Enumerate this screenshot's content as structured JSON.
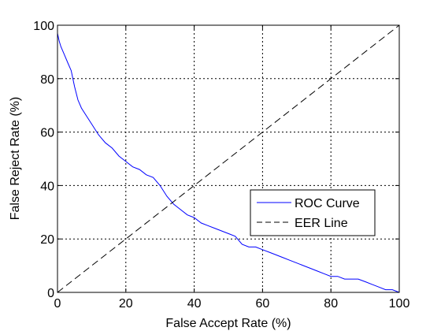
{
  "chart_data": {
    "type": "line",
    "xlabel": "False Accept Rate (%)",
    "ylabel": "False Reject Rate (%)",
    "xlim": [
      0,
      100
    ],
    "ylim": [
      0,
      100
    ],
    "xticks": [
      "0",
      "20",
      "40",
      "60",
      "80",
      "100"
    ],
    "yticks": [
      "0",
      "20",
      "40",
      "60",
      "80",
      "100"
    ],
    "grid": true,
    "legend_position": "right",
    "series": [
      {
        "name": "ROC Curve",
        "color": "#0000ff",
        "style": "solid",
        "x": [
          0,
          0.5,
          1,
          2,
          3,
          4,
          5,
          6,
          7,
          8,
          10,
          12,
          14,
          16,
          18,
          20,
          22,
          24,
          26,
          28,
          30,
          32,
          34,
          36,
          38,
          40,
          42,
          44,
          46,
          48,
          50,
          52,
          54,
          56,
          58,
          60,
          62,
          64,
          66,
          68,
          70,
          72,
          74,
          76,
          78,
          80,
          82,
          84,
          86,
          88,
          90,
          92,
          94,
          96,
          98,
          100
        ],
        "y": [
          97,
          94,
          92,
          89,
          86,
          83,
          77,
          72,
          69,
          67,
          63,
          59,
          56,
          54,
          51,
          49,
          47,
          46,
          44,
          43,
          40,
          36,
          33,
          31,
          29,
          28,
          26,
          25,
          24,
          23,
          22,
          21,
          18,
          17,
          17,
          16,
          15,
          14,
          13,
          12,
          11,
          10,
          9,
          8,
          7,
          6,
          6,
          5,
          5,
          5,
          4,
          3,
          2,
          1,
          1,
          0
        ]
      },
      {
        "name": "EER Line",
        "color": "#000000",
        "style": "dashed",
        "x": [
          0,
          100
        ],
        "y": [
          0,
          100
        ]
      }
    ]
  }
}
